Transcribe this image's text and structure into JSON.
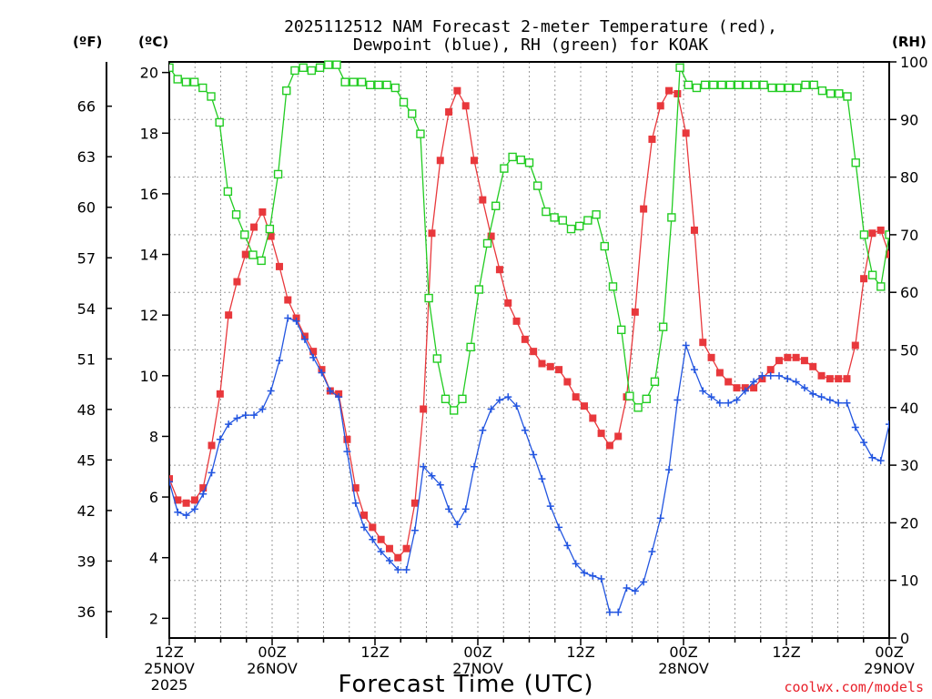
{
  "chart_data": {
    "type": "line",
    "title": [
      "2025112512 NAM Forecast 2-meter Temperature (red),",
      "Dewpoint (blue), RH (green) for KOAK"
    ],
    "xlabel": "Forecast Time (UTC)",
    "credit": "coolwx.com/models",
    "x_range_hours": [
      0,
      84
    ],
    "xticks": [
      {
        "hour": 0,
        "lines": [
          "12Z",
          "25NOV",
          "2025"
        ]
      },
      {
        "hour": 12,
        "lines": [
          "00Z",
          "26NOV"
        ]
      },
      {
        "hour": 24,
        "lines": [
          "12Z"
        ]
      },
      {
        "hour": 36,
        "lines": [
          "00Z",
          "27NOV"
        ]
      },
      {
        "hour": 48,
        "lines": [
          "12Z"
        ]
      },
      {
        "hour": 60,
        "lines": [
          "00Z",
          "28NOV"
        ]
      },
      {
        "hour": 72,
        "lines": [
          "12Z"
        ]
      },
      {
        "hour": 84,
        "lines": [
          "00Z",
          "29NOV"
        ]
      }
    ],
    "axes": {
      "celsius": {
        "unit_label": "(ºC)",
        "range": [
          1.35,
          20.35
        ],
        "ticks": [
          "2",
          "4",
          "6",
          "8",
          "10",
          "12",
          "14",
          "16",
          "18",
          "20"
        ]
      },
      "fahrenheit": {
        "unit_label": "(ºF)",
        "ticks": [
          "36",
          "39",
          "42",
          "45",
          "48",
          "51",
          "54",
          "57",
          "60",
          "63",
          "66"
        ]
      },
      "rh": {
        "unit_label": "(RH)",
        "range": [
          0,
          100
        ],
        "ticks": [
          "0",
          "10",
          "20",
          "30",
          "40",
          "50",
          "60",
          "70",
          "80",
          "90",
          "100"
        ]
      }
    },
    "series": [
      {
        "name": "Temperature",
        "unit": "°C",
        "axis": "celsius",
        "color": "#e8383c",
        "marker": "filled-square",
        "values": [
          6.6,
          5.9,
          5.8,
          5.9,
          6.3,
          7.7,
          9.4,
          12.0,
          13.1,
          14.0,
          14.9,
          15.4,
          14.6,
          13.6,
          12.5,
          11.9,
          11.3,
          10.8,
          10.2,
          9.5,
          9.4,
          7.9,
          6.3,
          5.4,
          5.0,
          4.6,
          4.3,
          4.0,
          4.3,
          5.8,
          8.9,
          14.7,
          17.1,
          18.7,
          19.4,
          18.9,
          17.1,
          15.8,
          14.6,
          13.5,
          12.4,
          11.8,
          11.2,
          10.8,
          10.4,
          10.3,
          10.2,
          9.8,
          9.3,
          9.0,
          8.6,
          8.1,
          7.7,
          8.0,
          9.3,
          12.1,
          15.5,
          17.8,
          18.9,
          19.4,
          19.3,
          18.0,
          14.8,
          11.1,
          10.6,
          10.1,
          9.8,
          9.6,
          9.6,
          9.6,
          9.9,
          10.2,
          10.5,
          10.6,
          10.6,
          10.5,
          10.3,
          10.0,
          9.9,
          9.9,
          9.9,
          11.0,
          13.2,
          14.7,
          14.8,
          14.0
        ]
      },
      {
        "name": "Dewpoint",
        "unit": "°C",
        "axis": "celsius",
        "color": "#2255e0",
        "marker": "plus",
        "values": [
          6.5,
          5.5,
          5.4,
          5.6,
          6.1,
          6.8,
          7.9,
          8.4,
          8.6,
          8.7,
          8.7,
          8.9,
          9.5,
          10.5,
          11.9,
          11.8,
          11.2,
          10.6,
          10.1,
          9.5,
          9.3,
          7.5,
          5.8,
          5.0,
          4.6,
          4.2,
          3.9,
          3.6,
          3.6,
          4.9,
          7.0,
          6.7,
          6.4,
          5.6,
          5.1,
          5.6,
          7.0,
          8.2,
          8.9,
          9.2,
          9.3,
          9.0,
          8.2,
          7.4,
          6.6,
          5.7,
          5.0,
          4.4,
          3.8,
          3.5,
          3.4,
          3.3,
          2.2,
          2.2,
          3.0,
          2.9,
          3.2,
          4.2,
          5.3,
          6.9,
          9.2,
          11.0,
          10.2,
          9.5,
          9.3,
          9.1,
          9.1,
          9.2,
          9.5,
          9.8,
          10.0,
          10.0,
          10.0,
          9.9,
          9.8,
          9.6,
          9.4,
          9.3,
          9.2,
          9.1,
          9.1,
          8.3,
          7.8,
          7.3,
          7.2,
          8.4
        ]
      },
      {
        "name": "RH",
        "unit": "%",
        "axis": "rh",
        "color": "#22cc22",
        "marker": "open-square",
        "values": [
          99,
          97,
          96.5,
          96.5,
          95.5,
          94,
          89.5,
          77.5,
          73.5,
          70,
          66.5,
          65.5,
          71,
          80.5,
          95,
          98.5,
          99,
          98.5,
          99,
          99.5,
          99.5,
          96.5,
          96.5,
          96.5,
          96,
          96,
          96,
          95.5,
          93,
          91,
          87.5,
          59,
          48.5,
          41.5,
          39.5,
          41.5,
          50.5,
          60.5,
          68.5,
          75,
          81.5,
          83.5,
          83,
          82.5,
          78.5,
          74,
          73,
          72.5,
          71,
          71.5,
          72.5,
          73.5,
          68,
          61,
          53.5,
          42,
          40,
          41.5,
          44.5,
          54,
          73,
          99,
          96,
          95.5,
          96,
          96,
          96,
          96,
          96,
          96,
          96,
          96,
          95.5,
          95.5,
          95.5,
          95.5,
          96,
          96,
          95,
          94.5,
          94.5,
          94,
          82.5,
          70,
          63,
          61,
          70
        ]
      }
    ]
  }
}
